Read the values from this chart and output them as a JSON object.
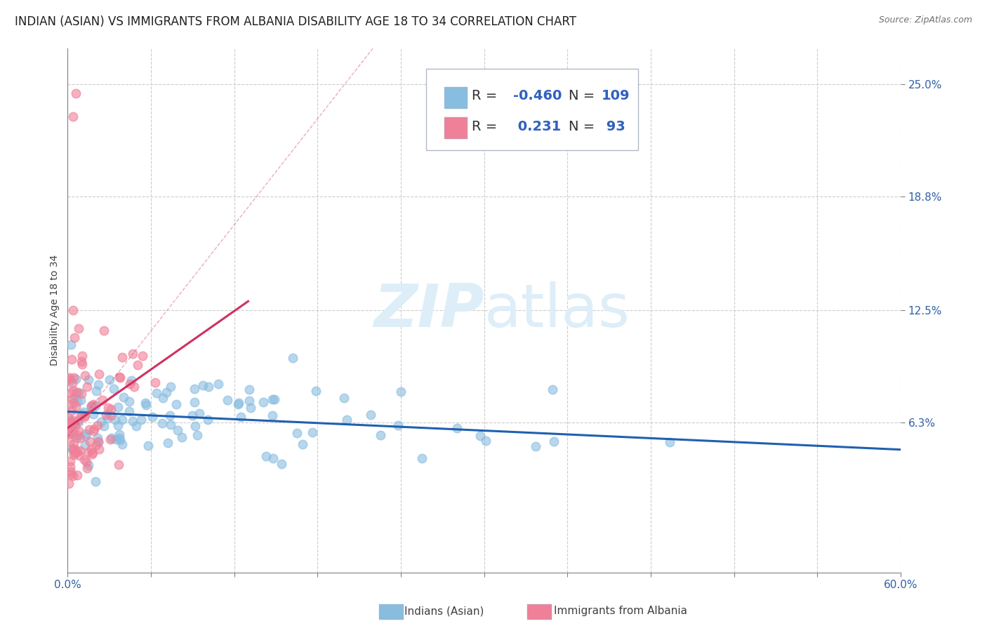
{
  "title": "INDIAN (ASIAN) VS IMMIGRANTS FROM ALBANIA DISABILITY AGE 18 TO 34 CORRELATION CHART",
  "source": "Source: ZipAtlas.com",
  "ylabel": "Disability Age 18 to 34",
  "xlim": [
    0.0,
    0.6
  ],
  "ylim": [
    -0.02,
    0.27
  ],
  "ytick_labels": [
    "6.3%",
    "12.5%",
    "18.8%",
    "25.0%"
  ],
  "ytick_vals": [
    0.063,
    0.125,
    0.188,
    0.25
  ],
  "scatter_color_blue": "#89bde0",
  "scatter_color_pink": "#f08098",
  "line_color_blue": "#2060b0",
  "line_color_pink": "#d03060",
  "background_color": "#ffffff",
  "grid_color": "#cccccc",
  "watermark_color": "#ddeef8",
  "title_fontsize": 12,
  "axis_label_fontsize": 10,
  "tick_fontsize": 11,
  "legend_fontsize": 14
}
